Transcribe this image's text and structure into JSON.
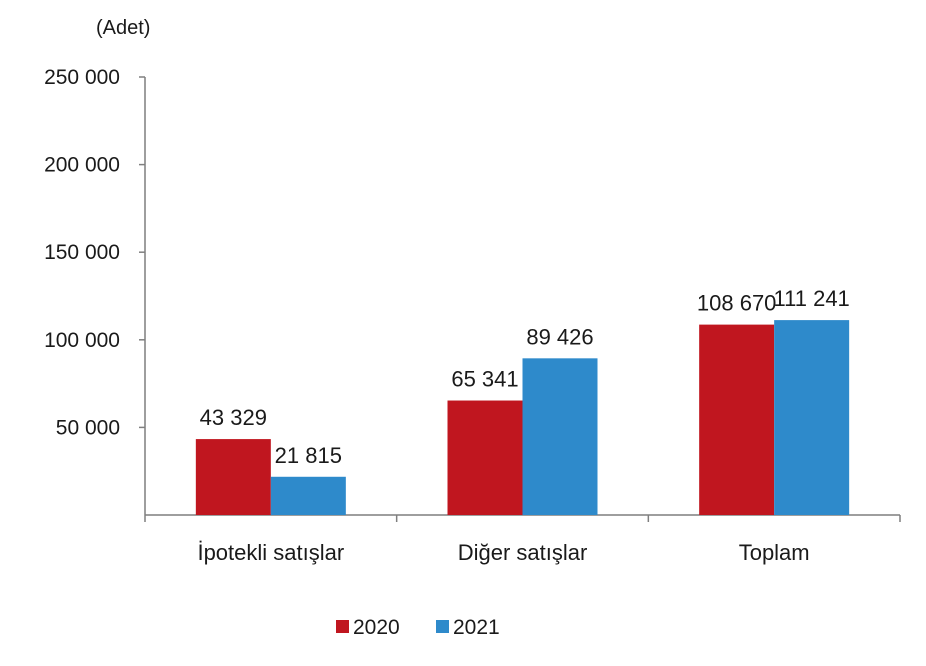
{
  "chart_data": {
    "type": "bar",
    "title": "",
    "unit_label": "(Adet)",
    "xlabel": "",
    "ylabel": "",
    "categories": [
      "İpotekli satışlar",
      "Diğer satışlar",
      "Toplam"
    ],
    "series": [
      {
        "name": "2020",
        "color": "#C0161F",
        "values": [
          43329,
          65341,
          108670
        ],
        "labels": [
          "43 329",
          "65 341",
          "108 670"
        ]
      },
      {
        "name": "2021",
        "color": "#2E8ACB",
        "values": [
          21815,
          89426,
          111241
        ],
        "labels": [
          "21 815",
          "89 426",
          "111 241"
        ]
      }
    ],
    "ylim": [
      0,
      250000
    ],
    "yticks": [
      50000,
      100000,
      150000,
      200000,
      250000
    ],
    "ytick_labels": [
      "50 000",
      "100 000",
      "150 000",
      "200 000",
      "250 000"
    ],
    "grid": false,
    "legend_position": "bottom"
  }
}
